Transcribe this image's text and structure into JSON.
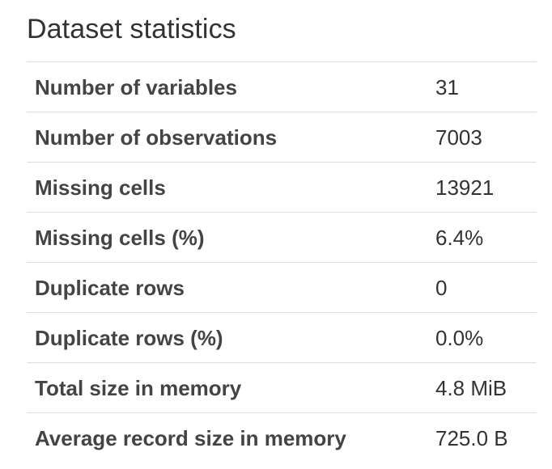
{
  "title": "Dataset statistics",
  "rows": [
    {
      "label": "Number of variables",
      "value": "31"
    },
    {
      "label": "Number of observations",
      "value": "7003"
    },
    {
      "label": "Missing cells",
      "value": "13921"
    },
    {
      "label": "Missing cells (%)",
      "value": "6.4%"
    },
    {
      "label": "Duplicate rows",
      "value": "0"
    },
    {
      "label": "Duplicate rows (%)",
      "value": "0.0%"
    },
    {
      "label": "Total size in memory",
      "value": "4.8 MiB"
    },
    {
      "label": "Average record size in memory",
      "value": "725.0 B"
    }
  ]
}
